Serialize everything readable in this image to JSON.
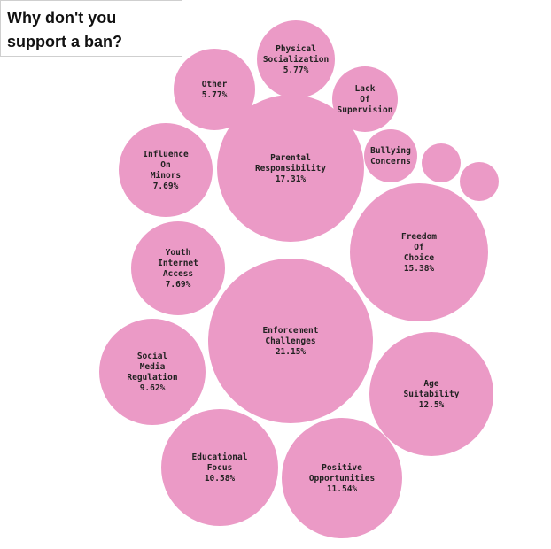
{
  "chart_data": {
    "type": "bubble",
    "title": [
      "Why don't you",
      "support a ban?"
    ],
    "color": "#eb9ac6",
    "items": [
      {
        "label": [
          "Enforcement",
          "Challenges"
        ],
        "value": "21.15%",
        "pct": 21.15
      },
      {
        "label": [
          "Parental",
          "Responsibility"
        ],
        "value": "17.31%",
        "pct": 17.31
      },
      {
        "label": [
          "Freedom",
          "Of",
          "Choice"
        ],
        "value": "15.38%",
        "pct": 15.38
      },
      {
        "label": [
          "Age",
          "Suitability"
        ],
        "value": "12.5%",
        "pct": 12.5
      },
      {
        "label": [
          "Positive",
          "Opportunities"
        ],
        "value": "11.54%",
        "pct": 11.54
      },
      {
        "label": [
          "Educational",
          "Focus"
        ],
        "value": "10.58%",
        "pct": 10.58
      },
      {
        "label": [
          "Social",
          "Media",
          "Regulation"
        ],
        "value": "9.62%",
        "pct": 9.62
      },
      {
        "label": [
          "Youth",
          "Internet",
          "Access"
        ],
        "value": "7.69%",
        "pct": 7.69
      },
      {
        "label": [
          "Influence",
          "On",
          "Minors"
        ],
        "value": "7.69%",
        "pct": 7.69
      },
      {
        "label": [
          "Other"
        ],
        "value": "5.77%",
        "pct": 5.77
      },
      {
        "label": [
          "Physical",
          "Socialization"
        ],
        "value": "5.77%",
        "pct": 5.77
      },
      {
        "label": [
          "Lack",
          "Of",
          "Supervision"
        ],
        "value": null,
        "pct": null
      },
      {
        "label": [
          "Bullying",
          "Concerns"
        ],
        "value": null,
        "pct": null
      },
      {
        "label": [],
        "value": null,
        "pct": null
      },
      {
        "label": [],
        "value": null,
        "pct": null
      }
    ]
  }
}
